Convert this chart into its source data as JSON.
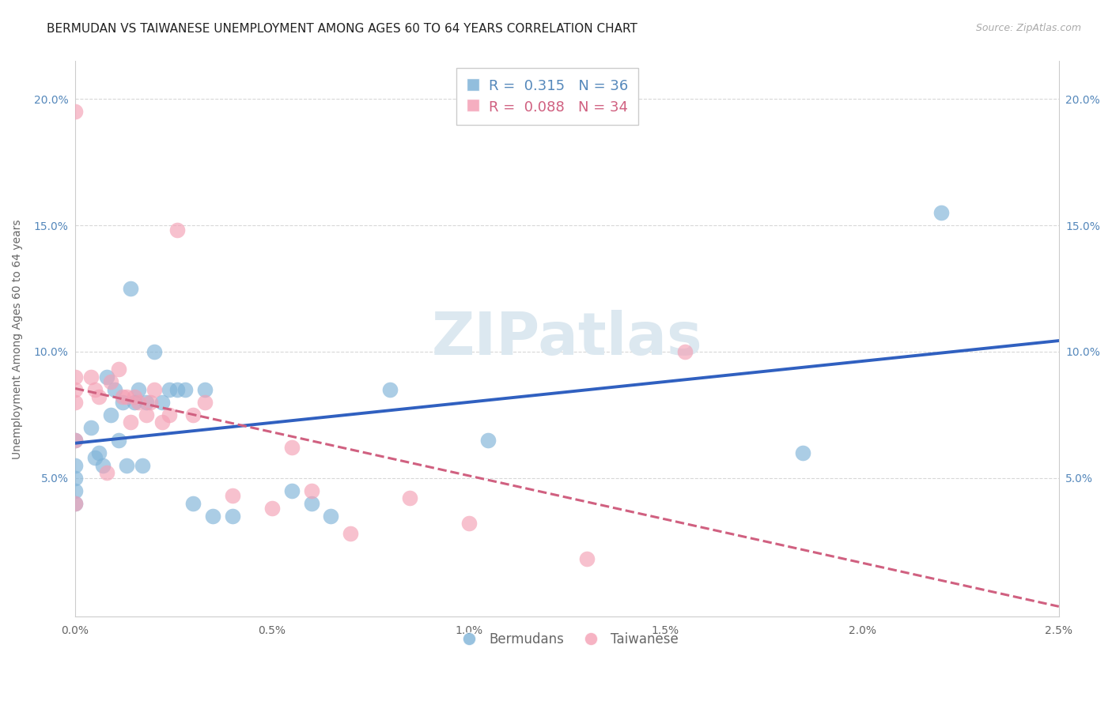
{
  "title": "BERMUDAN VS TAIWANESE UNEMPLOYMENT AMONG AGES 60 TO 64 YEARS CORRELATION CHART",
  "source": "Source: ZipAtlas.com",
  "ylabel": "Unemployment Among Ages 60 to 64 years",
  "xlim": [
    0.0,
    0.025
  ],
  "ylim": [
    -0.005,
    0.215
  ],
  "bermuda_color": "#7fb3d8",
  "taiwan_color": "#f4a0b5",
  "bermuda_line_color": "#3060c0",
  "taiwan_line_color": "#d06080",
  "bermuda_R": 0.315,
  "bermuda_N": 36,
  "taiwan_R": 0.088,
  "taiwan_N": 34,
  "x_ticks": [
    0.0,
    0.005,
    0.01,
    0.015,
    0.02,
    0.025
  ],
  "x_tick_labels": [
    "0.0%",
    "0.5%",
    "1.0%",
    "1.5%",
    "2.0%",
    "2.5%"
  ],
  "y_ticks": [
    0.05,
    0.1,
    0.15,
    0.2
  ],
  "y_tick_labels": [
    "5.0%",
    "10.0%",
    "15.0%",
    "20.0%"
  ],
  "grid_color": "#d8d8d8",
  "background_color": "#ffffff",
  "title_fontsize": 11,
  "source_fontsize": 9,
  "ylabel_fontsize": 10,
  "tick_fontsize": 10,
  "legend_fontsize": 12,
  "watermark": "ZIPatlas",
  "bermuda_x": [
    0.0,
    0.0,
    0.0,
    0.0,
    0.0,
    0.0004,
    0.0005,
    0.0006,
    0.0007,
    0.0008,
    0.0009,
    0.001,
    0.0011,
    0.0012,
    0.0013,
    0.0014,
    0.0015,
    0.0016,
    0.0017,
    0.0018,
    0.002,
    0.0022,
    0.0024,
    0.0026,
    0.0028,
    0.003,
    0.0033,
    0.0035,
    0.004,
    0.0055,
    0.006,
    0.0065,
    0.008,
    0.0105,
    0.0185,
    0.022
  ],
  "bermuda_y": [
    0.065,
    0.055,
    0.05,
    0.045,
    0.04,
    0.07,
    0.058,
    0.06,
    0.055,
    0.09,
    0.075,
    0.085,
    0.065,
    0.08,
    0.055,
    0.125,
    0.08,
    0.085,
    0.055,
    0.08,
    0.1,
    0.08,
    0.085,
    0.085,
    0.085,
    0.04,
    0.085,
    0.035,
    0.035,
    0.045,
    0.04,
    0.035,
    0.085,
    0.065,
    0.06,
    0.155
  ],
  "taiwan_x": [
    0.0,
    0.0,
    0.0,
    0.0,
    0.0,
    0.0,
    0.0004,
    0.0005,
    0.0006,
    0.0008,
    0.0009,
    0.0011,
    0.0012,
    0.0013,
    0.0014,
    0.0015,
    0.0016,
    0.0018,
    0.0019,
    0.002,
    0.0022,
    0.0024,
    0.0026,
    0.003,
    0.0033,
    0.004,
    0.005,
    0.0055,
    0.006,
    0.007,
    0.0085,
    0.01,
    0.013,
    0.0155
  ],
  "taiwan_y": [
    0.195,
    0.09,
    0.085,
    0.08,
    0.065,
    0.04,
    0.09,
    0.085,
    0.082,
    0.052,
    0.088,
    0.093,
    0.082,
    0.082,
    0.072,
    0.082,
    0.08,
    0.075,
    0.08,
    0.085,
    0.072,
    0.075,
    0.148,
    0.075,
    0.08,
    0.043,
    0.038,
    0.062,
    0.045,
    0.028,
    0.042,
    0.032,
    0.018,
    0.1
  ]
}
